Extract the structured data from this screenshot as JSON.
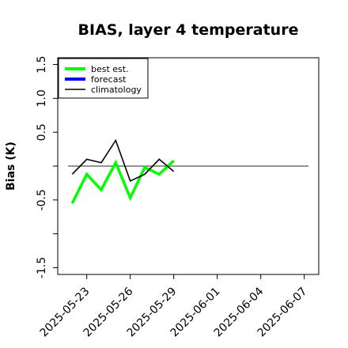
{
  "chart_data": {
    "type": "line",
    "title": "BIAS, layer 4 temperature",
    "xlabel": "",
    "ylabel": "Bias (K)",
    "ylim": [
      -1.6,
      1.6
    ],
    "yticks": [
      -1.5,
      -0.5,
      0.5,
      1.0,
      1.5
    ],
    "ytick_labels": [
      "-1.5",
      "-0.5",
      "0.5",
      "1.0",
      "1.5"
    ],
    "yticks_unlabeled": [
      -1.0,
      0.0
    ],
    "xlim": [
      "2025-05-21",
      "2025-06-08"
    ],
    "xticks": [
      "2025-05-23",
      "2025-05-26",
      "2025-05-29",
      "2025-06-01",
      "2025-06-04",
      "2025-06-07"
    ],
    "xtick_highlight": "2025-05-29",
    "reference_line": 0.0,
    "grid": false,
    "legend_position": "top-left",
    "series": [
      {
        "name": "best est.",
        "color": "#00ff00",
        "x": [
          "2025-05-22",
          "2025-05-23",
          "2025-05-24",
          "2025-05-25",
          "2025-05-26",
          "2025-05-27",
          "2025-05-28",
          "2025-05-29"
        ],
        "values": [
          -0.55,
          -0.12,
          -0.35,
          0.05,
          -0.47,
          -0.02,
          -0.12,
          0.08
        ]
      },
      {
        "name": "forecast",
        "color": "#0000ff",
        "x": [],
        "values": []
      },
      {
        "name": "climatology",
        "color": "#000000",
        "x": [
          "2025-05-22",
          "2025-05-23",
          "2025-05-24",
          "2025-05-25",
          "2025-05-26",
          "2025-05-27",
          "2025-05-28",
          "2025-05-29"
        ],
        "values": [
          -0.12,
          0.1,
          0.05,
          0.38,
          -0.22,
          -0.12,
          0.1,
          -0.08
        ]
      }
    ]
  }
}
